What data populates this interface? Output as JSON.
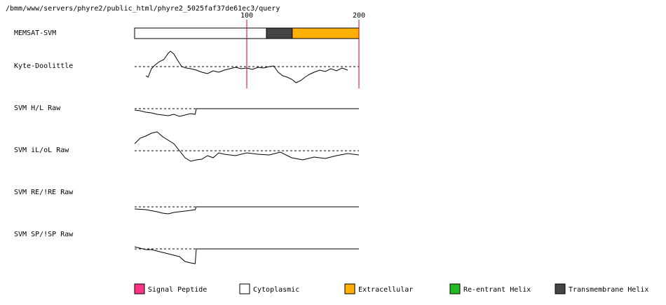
{
  "header": {
    "path": "/bmm/www/servers/phyre2/public_html/phyre2_5025faf37de61ec3/query"
  },
  "axis": {
    "ticks": [
      100,
      200
    ],
    "xlim": [
      0,
      200
    ]
  },
  "memsat": {
    "label": "MEMSAT-SVM",
    "segments": [
      {
        "start": 0,
        "end": 117.5,
        "color": "#ffffff"
      },
      {
        "start": 117.5,
        "end": 140.5,
        "color": "#444444"
      },
      {
        "start": 140.5,
        "end": 200,
        "color": "#ffb000"
      }
    ]
  },
  "tracks": [
    {
      "label": "Kyte-Doolittle",
      "residues": [
        10,
        12,
        15,
        18,
        22,
        26,
        30,
        32,
        35,
        38,
        42,
        46,
        50,
        55,
        60,
        65,
        70,
        75,
        80,
        85,
        90,
        95,
        100,
        105,
        110,
        115,
        120,
        124,
        128,
        132,
        136,
        140,
        144,
        148,
        152,
        156,
        160,
        165,
        170,
        175,
        180,
        185,
        190
      ],
      "values": [
        -1.3,
        -1.5,
        -0.3,
        0.2,
        0.7,
        1.0,
        1.9,
        2.2,
        1.8,
        1.0,
        0,
        -0.2,
        -0.3,
        -0.5,
        -0.8,
        -1.0,
        -0.6,
        -0.8,
        -0.5,
        -0.3,
        -0.1,
        -0.3,
        -0.2,
        -0.4,
        -0.1,
        -0.2,
        0,
        0.1,
        -0.8,
        -1.3,
        -1.5,
        -1.8,
        -2.3,
        -2.0,
        -1.5,
        -1.1,
        -0.8,
        -0.5,
        -0.7,
        -0.3,
        -0.6,
        -0.2,
        -0.5
      ]
    },
    {
      "label": "SVM H/L Raw",
      "residues": [
        0,
        5,
        10,
        15,
        20,
        25,
        30,
        35,
        40,
        45,
        50,
        54,
        55,
        200
      ],
      "values": [
        -0.2,
        -0.3,
        -0.5,
        -0.6,
        -0.8,
        -0.9,
        -1.0,
        -0.8,
        -1.1,
        -0.9,
        -0.7,
        -0.8,
        0,
        0
      ]
    },
    {
      "label": "SVM iL/oL Raw",
      "residues": [
        0,
        5,
        10,
        15,
        20,
        25,
        30,
        35,
        40,
        45,
        50,
        55,
        60,
        65,
        70,
        75,
        80,
        90,
        100,
        110,
        120,
        130,
        140,
        150,
        160,
        170,
        180,
        190,
        200
      ],
      "values": [
        1.0,
        1.8,
        2.1,
        2.5,
        2.7,
        2.0,
        1.5,
        1.0,
        0,
        -1.0,
        -1.5,
        -1.3,
        -1.2,
        -0.7,
        -1.0,
        -0.3,
        -0.5,
        -0.7,
        -0.3,
        -0.5,
        -0.6,
        -0.2,
        -1.0,
        -1.3,
        -0.9,
        -1.1,
        -0.7,
        -0.4,
        -0.6
      ]
    },
    {
      "label": "SVM RE/!RE Raw",
      "residues": [
        0,
        10,
        20,
        25,
        30,
        35,
        40,
        50,
        54,
        55,
        200
      ],
      "values": [
        -0.3,
        -0.4,
        -0.7,
        -0.9,
        -1.0,
        -0.8,
        -0.7,
        -0.5,
        -0.4,
        0,
        0
      ]
    },
    {
      "label": "SVM SP/!SP Raw",
      "residues": [
        0,
        5,
        10,
        15,
        20,
        25,
        30,
        35,
        40,
        45,
        50,
        54,
        55,
        200
      ],
      "values": [
        0.3,
        0.1,
        -0.1,
        -0.1,
        -0.3,
        -0.5,
        -0.7,
        -0.9,
        -1.1,
        -1.8,
        -2.0,
        -2.1,
        0,
        0
      ]
    }
  ],
  "legend": [
    {
      "label": "Signal Peptide",
      "color": "#ff3385"
    },
    {
      "label": "Cytoplasmic",
      "color": "#ffffff"
    },
    {
      "label": "Extracellular",
      "color": "#ffb000"
    },
    {
      "label": "Re-entrant Helix",
      "color": "#22bb22"
    },
    {
      "label": "Transmembrane Helix",
      "color": "#444444"
    }
  ]
}
